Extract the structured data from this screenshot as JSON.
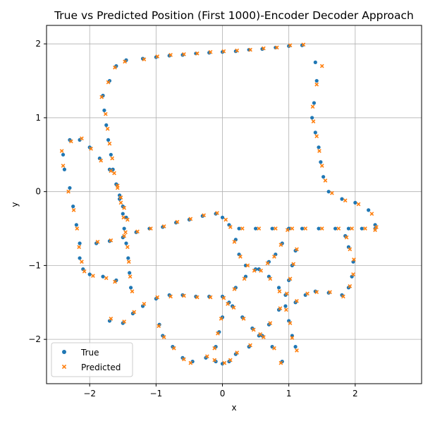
{
  "chart_data": {
    "type": "scatter",
    "title": "True vs Predicted Position (First 1000)-Encoder Decoder Approach",
    "xlabel": "x",
    "ylabel": "y",
    "xlim": [
      -2.65,
      3.0
    ],
    "ylim": [
      -2.6,
      2.25
    ],
    "x_ticks": [
      -2,
      -1,
      0,
      1,
      2
    ],
    "y_ticks": [
      -2,
      -1,
      0,
      1,
      2
    ],
    "x_tick_labels": [
      "−2",
      "−1",
      "0",
      "1",
      "2"
    ],
    "y_tick_labels": [
      "−2",
      "−1",
      "0",
      "1",
      "2"
    ],
    "grid": true,
    "legend_position": "lower-left",
    "colors": {
      "true": "#1f77b4",
      "predicted": "#ff7f0e",
      "grid": "#b0b0b0"
    },
    "series": [
      {
        "name": "True",
        "marker": "circle",
        "points": [
          [
            -1.6,
            1.7
          ],
          [
            -1.45,
            1.78
          ],
          [
            -1.2,
            1.8
          ],
          [
            -1.0,
            1.82
          ],
          [
            -0.8,
            1.84
          ],
          [
            -0.6,
            1.85
          ],
          [
            -0.4,
            1.87
          ],
          [
            -0.2,
            1.88
          ],
          [
            0.0,
            1.89
          ],
          [
            0.2,
            1.9
          ],
          [
            0.4,
            1.92
          ],
          [
            0.6,
            1.93
          ],
          [
            0.8,
            1.95
          ],
          [
            1.0,
            1.97
          ],
          [
            1.2,
            1.98
          ],
          [
            1.4,
            1.75
          ],
          [
            1.42,
            1.5
          ],
          [
            1.38,
            1.2
          ],
          [
            1.35,
            1.0
          ],
          [
            1.4,
            0.8
          ],
          [
            1.45,
            0.6
          ],
          [
            1.48,
            0.4
          ],
          [
            1.52,
            0.2
          ],
          [
            1.6,
            0.0
          ],
          [
            1.8,
            -0.1
          ],
          [
            2.0,
            -0.15
          ],
          [
            2.2,
            -0.25
          ],
          [
            2.3,
            -0.45
          ],
          [
            -1.7,
            1.5
          ],
          [
            -1.8,
            1.3
          ],
          [
            -1.78,
            1.1
          ],
          [
            -1.75,
            0.9
          ],
          [
            -1.72,
            0.7
          ],
          [
            -1.68,
            0.5
          ],
          [
            -1.65,
            0.3
          ],
          [
            -1.6,
            0.1
          ],
          [
            -1.55,
            -0.1
          ],
          [
            -1.5,
            -0.3
          ],
          [
            -1.48,
            -0.5
          ],
          [
            -1.45,
            -0.7
          ],
          [
            -1.42,
            -0.9
          ],
          [
            -1.4,
            -1.1
          ],
          [
            -1.38,
            -1.3
          ],
          [
            -2.4,
            0.5
          ],
          [
            -2.3,
            0.7
          ],
          [
            -2.15,
            0.7
          ],
          [
            -2.0,
            0.6
          ],
          [
            -1.85,
            0.45
          ],
          [
            -1.7,
            0.3
          ],
          [
            -1.6,
            0.1
          ],
          [
            -1.55,
            -0.05
          ],
          [
            -1.5,
            -0.2
          ],
          [
            -1.45,
            -0.35
          ],
          [
            -2.38,
            0.3
          ],
          [
            -2.3,
            0.05
          ],
          [
            -2.25,
            -0.2
          ],
          [
            -2.2,
            -0.45
          ],
          [
            -2.15,
            -0.7
          ],
          [
            -2.15,
            -0.9
          ],
          [
            -2.1,
            -1.05
          ],
          [
            -2.0,
            -1.12
          ],
          [
            -1.8,
            -1.15
          ],
          [
            -1.6,
            -1.2
          ],
          [
            -1.9,
            -0.7
          ],
          [
            -1.7,
            -0.67
          ],
          [
            -1.5,
            -0.62
          ],
          [
            -1.3,
            -0.55
          ],
          [
            -1.1,
            -0.5
          ],
          [
            -0.9,
            -0.48
          ],
          [
            -0.7,
            -0.42
          ],
          [
            -0.5,
            -0.38
          ],
          [
            -0.3,
            -0.33
          ],
          [
            -0.1,
            -0.3
          ],
          [
            0.0,
            -0.35
          ],
          [
            0.1,
            -0.45
          ],
          [
            0.25,
            -0.5
          ],
          [
            0.5,
            -0.5
          ],
          [
            0.75,
            -0.5
          ],
          [
            1.0,
            -0.5
          ],
          [
            1.2,
            -0.5
          ],
          [
            1.45,
            -0.5
          ],
          [
            1.7,
            -0.5
          ],
          [
            1.9,
            -0.5
          ],
          [
            2.1,
            -0.5
          ],
          [
            2.3,
            -0.5
          ],
          [
            0.2,
            -0.65
          ],
          [
            0.25,
            -0.85
          ],
          [
            0.35,
            -1.0
          ],
          [
            0.55,
            -1.05
          ],
          [
            0.7,
            -1.15
          ],
          [
            0.85,
            -1.3
          ],
          [
            0.95,
            -1.55
          ],
          [
            1.0,
            -1.75
          ],
          [
            1.05,
            -1.95
          ],
          [
            1.1,
            -2.1
          ],
          [
            1.0,
            -0.5
          ],
          [
            0.9,
            -0.7
          ],
          [
            0.8,
            -0.85
          ],
          [
            0.7,
            -0.95
          ],
          [
            0.5,
            -1.05
          ],
          [
            0.35,
            -1.15
          ],
          [
            0.2,
            -1.3
          ],
          [
            0.1,
            -1.5
          ],
          [
            0.0,
            -1.7
          ],
          [
            -0.05,
            -1.9
          ],
          [
            -0.1,
            -2.1
          ],
          [
            -0.8,
            -1.4
          ],
          [
            -0.6,
            -1.4
          ],
          [
            -0.4,
            -1.42
          ],
          [
            -0.2,
            -1.42
          ],
          [
            0.0,
            -1.42
          ],
          [
            0.15,
            -1.55
          ],
          [
            0.3,
            -1.7
          ],
          [
            0.45,
            -1.85
          ],
          [
            0.6,
            -1.95
          ],
          [
            0.75,
            -2.1
          ],
          [
            0.9,
            -2.3
          ],
          [
            -1.7,
            -1.75
          ],
          [
            -1.5,
            -1.78
          ],
          [
            -1.35,
            -1.65
          ],
          [
            -1.2,
            -1.55
          ],
          [
            -1.0,
            -1.45
          ],
          [
            -0.95,
            -1.8
          ],
          [
            -0.9,
            -1.95
          ],
          [
            -0.75,
            -2.1
          ],
          [
            -0.6,
            -2.25
          ],
          [
            -0.45,
            -2.3
          ],
          [
            -0.25,
            -2.25
          ],
          [
            -0.1,
            -2.3
          ],
          [
            0.0,
            -2.33
          ],
          [
            0.1,
            -2.3
          ],
          [
            0.2,
            -2.2
          ],
          [
            1.1,
            -1.5
          ],
          [
            1.25,
            -1.4
          ],
          [
            1.4,
            -1.35
          ],
          [
            1.6,
            -1.37
          ],
          [
            1.8,
            -1.4
          ],
          [
            1.9,
            -1.3
          ],
          [
            1.95,
            -1.15
          ],
          [
            1.97,
            -0.95
          ],
          [
            1.9,
            -0.75
          ],
          [
            1.85,
            -0.6
          ],
          [
            0.4,
            -2.1
          ],
          [
            0.55,
            -1.95
          ],
          [
            0.7,
            -1.8
          ],
          [
            0.85,
            -1.6
          ],
          [
            0.95,
            -1.4
          ],
          [
            1.0,
            -1.2
          ],
          [
            1.05,
            -1.0
          ],
          [
            1.1,
            -0.8
          ]
        ]
      },
      {
        "name": "Predicted",
        "marker": "x",
        "points": [
          [
            -1.62,
            1.68
          ],
          [
            -1.47,
            1.76
          ],
          [
            -1.18,
            1.79
          ],
          [
            -0.98,
            1.83
          ],
          [
            -0.78,
            1.85
          ],
          [
            -0.58,
            1.86
          ],
          [
            -0.38,
            1.87
          ],
          [
            -0.18,
            1.89
          ],
          [
            0.02,
            1.9
          ],
          [
            0.22,
            1.91
          ],
          [
            0.42,
            1.92
          ],
          [
            0.62,
            1.94
          ],
          [
            0.82,
            1.95
          ],
          [
            1.02,
            1.98
          ],
          [
            1.22,
            1.99
          ],
          [
            1.5,
            1.7
          ],
          [
            1.42,
            1.45
          ],
          [
            1.36,
            1.15
          ],
          [
            1.37,
            0.95
          ],
          [
            1.42,
            0.75
          ],
          [
            1.46,
            0.55
          ],
          [
            1.5,
            0.35
          ],
          [
            1.55,
            0.15
          ],
          [
            1.65,
            -0.02
          ],
          [
            1.85,
            -0.12
          ],
          [
            2.05,
            -0.17
          ],
          [
            2.25,
            -0.3
          ],
          [
            2.32,
            -0.48
          ],
          [
            -1.72,
            1.48
          ],
          [
            -1.82,
            1.28
          ],
          [
            -1.76,
            1.05
          ],
          [
            -1.73,
            0.85
          ],
          [
            -1.7,
            0.65
          ],
          [
            -1.66,
            0.45
          ],
          [
            -1.63,
            0.25
          ],
          [
            -1.58,
            0.05
          ],
          [
            -1.53,
            -0.15
          ],
          [
            -1.49,
            -0.35
          ],
          [
            -1.46,
            -0.55
          ],
          [
            -1.43,
            -0.75
          ],
          [
            -1.41,
            -0.95
          ],
          [
            -1.39,
            -1.15
          ],
          [
            -1.36,
            -1.35
          ],
          [
            -2.42,
            0.55
          ],
          [
            -2.28,
            0.68
          ],
          [
            -2.12,
            0.72
          ],
          [
            -1.98,
            0.58
          ],
          [
            -1.83,
            0.42
          ],
          [
            -1.68,
            0.28
          ],
          [
            -1.58,
            0.08
          ],
          [
            -1.53,
            -0.08
          ],
          [
            -1.48,
            -0.22
          ],
          [
            -1.43,
            -0.38
          ],
          [
            -2.4,
            0.35
          ],
          [
            -2.32,
            0.0
          ],
          [
            -2.24,
            -0.25
          ],
          [
            -2.19,
            -0.5
          ],
          [
            -2.16,
            -0.75
          ],
          [
            -2.12,
            -0.95
          ],
          [
            -2.08,
            -1.08
          ],
          [
            -1.95,
            -1.14
          ],
          [
            -1.75,
            -1.17
          ],
          [
            -1.62,
            -1.22
          ],
          [
            -1.88,
            -0.68
          ],
          [
            -1.68,
            -0.66
          ],
          [
            -1.48,
            -0.6
          ],
          [
            -1.28,
            -0.54
          ],
          [
            -1.08,
            -0.5
          ],
          [
            -0.88,
            -0.47
          ],
          [
            -0.68,
            -0.41
          ],
          [
            -0.48,
            -0.37
          ],
          [
            -0.28,
            -0.32
          ],
          [
            -0.08,
            -0.29
          ],
          [
            0.05,
            -0.38
          ],
          [
            0.12,
            -0.48
          ],
          [
            0.3,
            -0.5
          ],
          [
            0.55,
            -0.5
          ],
          [
            0.8,
            -0.5
          ],
          [
            1.05,
            -0.5
          ],
          [
            1.25,
            -0.5
          ],
          [
            1.5,
            -0.5
          ],
          [
            1.75,
            -0.5
          ],
          [
            1.95,
            -0.5
          ],
          [
            2.15,
            -0.5
          ],
          [
            2.3,
            -0.52
          ],
          [
            0.18,
            -0.68
          ],
          [
            0.27,
            -0.88
          ],
          [
            0.38,
            -1.0
          ],
          [
            0.58,
            -1.07
          ],
          [
            0.72,
            -1.18
          ],
          [
            0.86,
            -1.35
          ],
          [
            0.96,
            -1.6
          ],
          [
            1.02,
            -1.78
          ],
          [
            1.05,
            -1.98
          ],
          [
            1.12,
            -2.15
          ],
          [
            0.98,
            -0.52
          ],
          [
            0.88,
            -0.72
          ],
          [
            0.78,
            -0.88
          ],
          [
            0.68,
            -0.97
          ],
          [
            0.48,
            -1.07
          ],
          [
            0.33,
            -1.18
          ],
          [
            0.18,
            -1.32
          ],
          [
            0.08,
            -1.52
          ],
          [
            -0.02,
            -1.72
          ],
          [
            -0.07,
            -1.92
          ],
          [
            -0.12,
            -2.12
          ],
          [
            -0.78,
            -1.42
          ],
          [
            -0.58,
            -1.41
          ],
          [
            -0.38,
            -1.43
          ],
          [
            -0.18,
            -1.43
          ],
          [
            0.02,
            -1.44
          ],
          [
            0.17,
            -1.57
          ],
          [
            0.32,
            -1.72
          ],
          [
            0.47,
            -1.87
          ],
          [
            0.62,
            -1.97
          ],
          [
            0.78,
            -2.12
          ],
          [
            0.88,
            -2.32
          ],
          [
            -1.68,
            -1.72
          ],
          [
            -1.48,
            -1.76
          ],
          [
            -1.33,
            -1.63
          ],
          [
            -1.18,
            -1.52
          ],
          [
            -0.98,
            -1.43
          ],
          [
            -0.96,
            -1.82
          ],
          [
            -0.88,
            -1.97
          ],
          [
            -0.73,
            -2.12
          ],
          [
            -0.58,
            -2.27
          ],
          [
            -0.48,
            -2.32
          ],
          [
            -0.23,
            -2.23
          ],
          [
            -0.12,
            -2.28
          ],
          [
            0.03,
            -2.32
          ],
          [
            0.12,
            -2.28
          ],
          [
            0.22,
            -2.18
          ],
          [
            1.12,
            -1.48
          ],
          [
            1.28,
            -1.38
          ],
          [
            1.42,
            -1.36
          ],
          [
            1.62,
            -1.36
          ],
          [
            1.82,
            -1.42
          ],
          [
            1.92,
            -1.28
          ],
          [
            1.97,
            -1.12
          ],
          [
            1.98,
            -0.92
          ],
          [
            1.92,
            -0.78
          ],
          [
            1.87,
            -0.62
          ],
          [
            0.42,
            -2.08
          ],
          [
            0.57,
            -1.93
          ],
          [
            0.72,
            -1.78
          ],
          [
            0.87,
            -1.58
          ],
          [
            0.97,
            -1.38
          ],
          [
            1.02,
            -1.18
          ],
          [
            1.07,
            -0.98
          ],
          [
            1.12,
            -0.78
          ]
        ]
      }
    ]
  }
}
